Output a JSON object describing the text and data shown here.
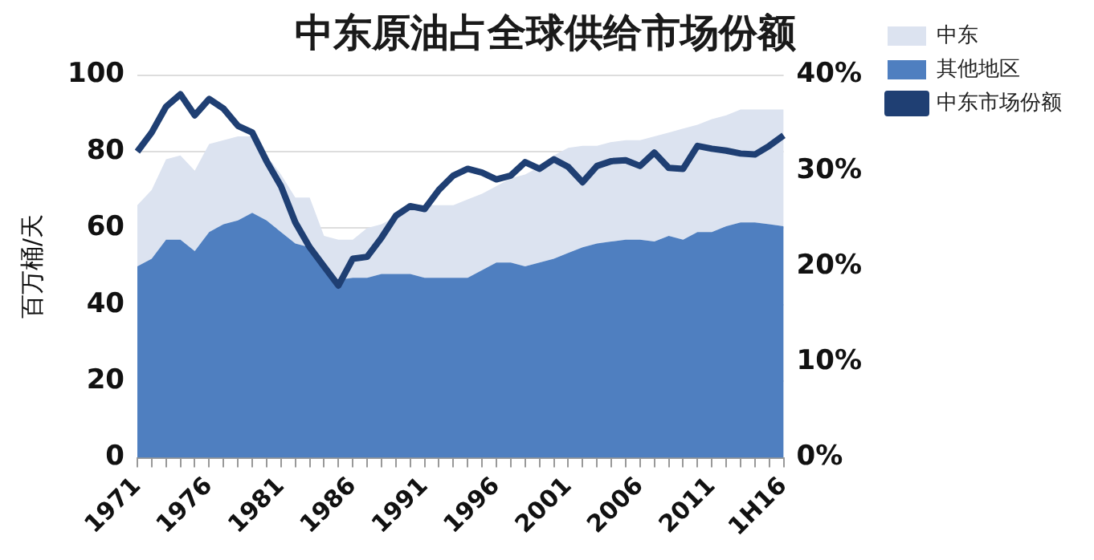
{
  "chart_data": {
    "type": "area",
    "title": "中东原油占全球供给市场份额",
    "ylabel": "百万桶/天",
    "categories": [
      "1971",
      null,
      null,
      null,
      null,
      "1976",
      null,
      null,
      null,
      null,
      "1981",
      null,
      null,
      null,
      null,
      "1986",
      null,
      null,
      null,
      null,
      "1991",
      null,
      null,
      null,
      null,
      "1996",
      null,
      null,
      null,
      null,
      "2001",
      null,
      null,
      null,
      null,
      "2006",
      null,
      null,
      null,
      null,
      "2011",
      null,
      null,
      null,
      null,
      "1H16"
    ],
    "stacked": true,
    "series": [
      {
        "name": "其他地区",
        "color": "#4f7fc0",
        "values": [
          50,
          52,
          57,
          57,
          54,
          59,
          61,
          62,
          64,
          62,
          59,
          56,
          55,
          50,
          46.5,
          47,
          47,
          48,
          48,
          48,
          47,
          47,
          47,
          47,
          49,
          51,
          51,
          50,
          51,
          52,
          53.5,
          55,
          56,
          56.5,
          57,
          57,
          56.5,
          58,
          57,
          59,
          59,
          60.5,
          61.5,
          61.5,
          61,
          60.5
        ]
      },
      {
        "name": "中东",
        "color": "#dce3f0",
        "values": [
          16,
          18,
          21,
          22,
          21,
          23,
          22,
          22,
          20,
          17,
          15,
          12,
          13,
          8,
          10.5,
          10,
          13,
          13,
          15,
          18,
          19,
          19,
          19,
          20.5,
          20,
          20,
          22,
          24,
          25,
          27,
          27.5,
          26.5,
          25.5,
          26,
          26,
          26,
          27.5,
          27,
          29,
          28,
          29.5,
          29,
          29.5,
          29.5,
          30,
          30.5
        ]
      },
      {
        "name": "中东市场份额",
        "type": "line",
        "axis": "y2",
        "color": "#1f3f73",
        "values": [
          32,
          34,
          36.7,
          38,
          35.8,
          37.5,
          36.5,
          34.7,
          34,
          31,
          28.4,
          24.6,
          22,
          20,
          18,
          20.8,
          21,
          23,
          25.3,
          26.3,
          26,
          28,
          29.5,
          30.2,
          29.8,
          29.1,
          29.5,
          30.9,
          30.2,
          31.2,
          30.4,
          28.8,
          30.5,
          31,
          31.1,
          30.5,
          31.9,
          30.3,
          30.2,
          32.6,
          32.3,
          32.1,
          31.8,
          31.7,
          32.6,
          33.7
        ]
      }
    ],
    "ylim": [
      0,
      100
    ],
    "yticks": [
      0,
      20,
      40,
      60,
      80,
      100
    ],
    "y2lim": [
      0,
      40
    ],
    "y2ticks": [
      {
        "value": 0,
        "label": "0%"
      },
      {
        "value": 10,
        "label": "10%"
      },
      {
        "value": 20,
        "label": "20%"
      },
      {
        "value": 30,
        "label": "30%"
      },
      {
        "value": 40,
        "label": "40%"
      }
    ],
    "grid": "y",
    "legend": "right",
    "marker": "none"
  }
}
